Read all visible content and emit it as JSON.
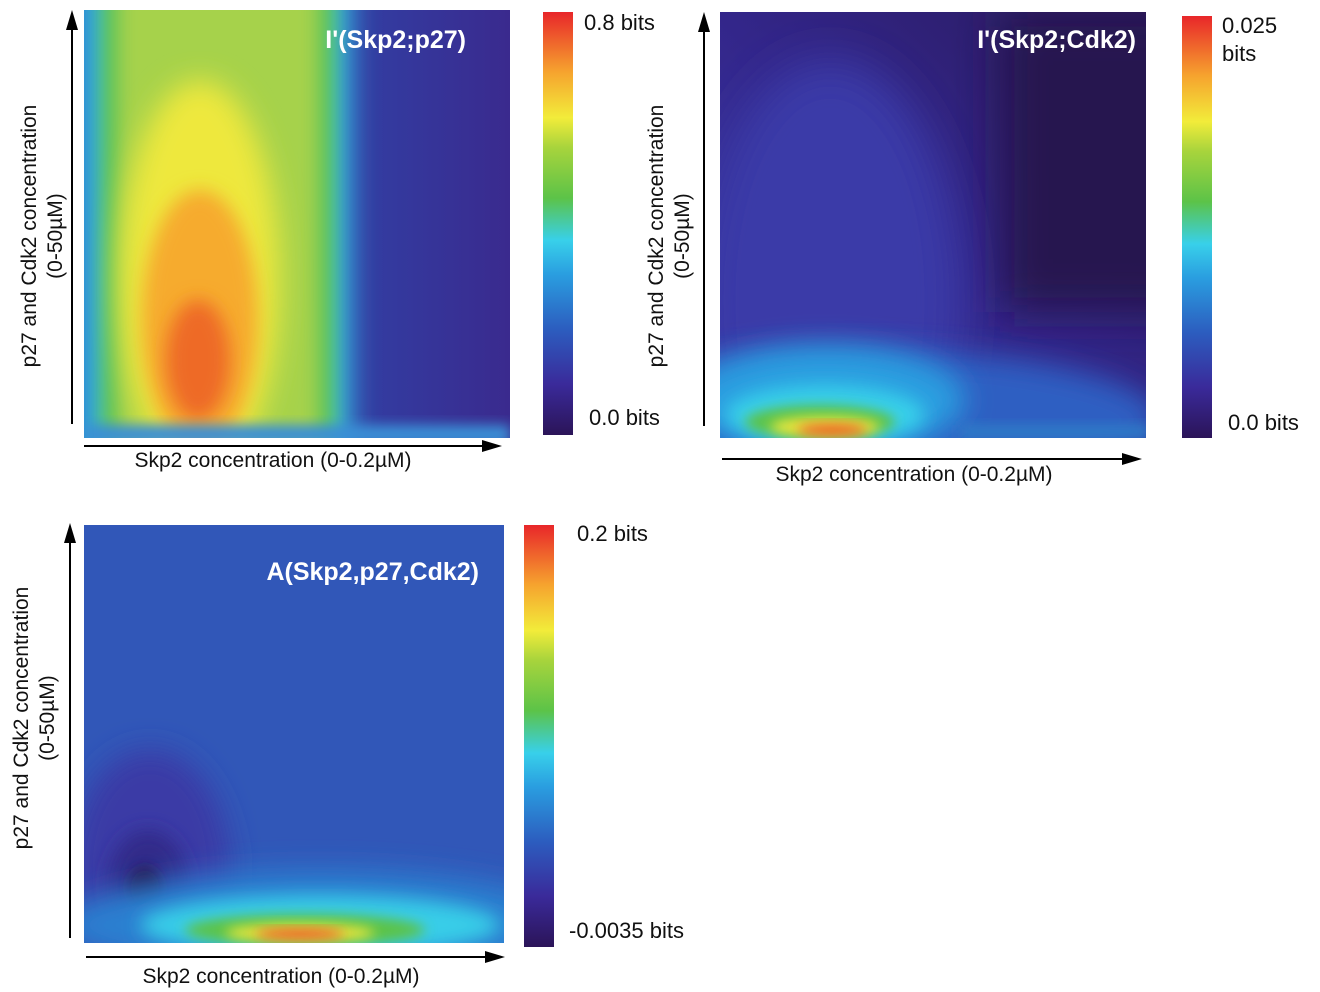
{
  "chart_data": [
    {
      "type": "heatmap",
      "title": "I'(Skp2;p27)",
      "xlabel": "Skp2 concentration (0-0.2µM)",
      "ylabel": "p27 and Cdk2 concentration",
      "ylabel_line2": "(0-50µM)",
      "xlim": [
        0,
        0.2
      ],
      "ylim": [
        0,
        50
      ],
      "colorbar": {
        "max_label": "0.8 bits",
        "min_label": "0.0 bits",
        "max_value": 0.8,
        "min_value": 0.0
      },
      "features": [
        {
          "description": "vertical ridge",
          "skp2_fraction": 0.28,
          "peak_p27_fraction": 0.18,
          "peak_value": 0.75
        }
      ]
    },
    {
      "type": "heatmap",
      "title": "I'(Skp2;Cdk2)",
      "xlabel": "Skp2 concentration (0-0.2µM)",
      "ylabel": "p27 and Cdk2 concentration",
      "ylabel_line2": "(0-50µM)",
      "xlim": [
        0,
        0.2
      ],
      "ylim": [
        0,
        50
      ],
      "colorbar": {
        "max_label": "0.025",
        "max_label_line2": "bits",
        "min_label": "0.0 bits",
        "max_value": 0.025,
        "min_value": 0.0
      },
      "features": [
        {
          "description": "hotspot near bottom",
          "skp2_fraction": 0.27,
          "peak_p27_fraction": 0.02,
          "peak_value": 0.024
        }
      ]
    },
    {
      "type": "heatmap",
      "title": "A(Skp2,p27,Cdk2)",
      "xlabel": "Skp2 concentration (0-0.2µM)",
      "ylabel": "p27 and Cdk2 concentration",
      "ylabel_line2": "(0-50µM)",
      "xlim": [
        0,
        0.2
      ],
      "ylim": [
        0,
        50
      ],
      "colorbar": {
        "max_label": "0.2 bits",
        "min_label": "-0.0035 bits",
        "max_value": 0.2,
        "min_value": -0.0035
      },
      "features": [
        {
          "description": "hotspot near bottom",
          "skp2_fraction": 0.55,
          "peak_p27_fraction": 0.03,
          "peak_value": 0.19
        },
        {
          "description": "negative minimum",
          "skp2_fraction": 0.15,
          "peak_p27_fraction": 0.13,
          "peak_value": -0.0035
        }
      ]
    }
  ]
}
